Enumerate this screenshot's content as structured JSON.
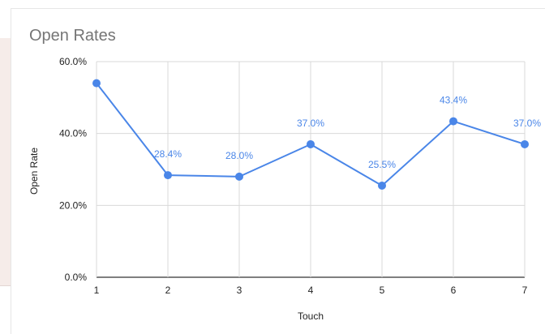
{
  "chart_data": {
    "type": "line",
    "title": "Open Rates",
    "xlabel": "Touch",
    "ylabel": "Open Rate",
    "x": [
      1,
      2,
      3,
      4,
      5,
      6,
      7
    ],
    "series": [
      {
        "values": [
          54.0,
          28.4,
          28.0,
          37.0,
          25.5,
          43.4,
          37.0
        ],
        "data_labels": [
          "",
          "28.4%",
          "28.0%",
          "37.0%",
          "25.5%",
          "43.4%",
          "37.0%"
        ]
      }
    ],
    "ylim": [
      0,
      60
    ],
    "yticks": [
      "0.0%",
      "20.0%",
      "40.0%",
      "60.0%"
    ],
    "ytick_values": [
      0,
      20,
      40,
      60
    ],
    "xticks": [
      "1",
      "2",
      "3",
      "4",
      "5",
      "6",
      "7"
    ],
    "grid": true,
    "legend": "none",
    "colors": {
      "series": "#4a86e8",
      "grid": "#d9d9d9",
      "axis": "#333333"
    }
  }
}
